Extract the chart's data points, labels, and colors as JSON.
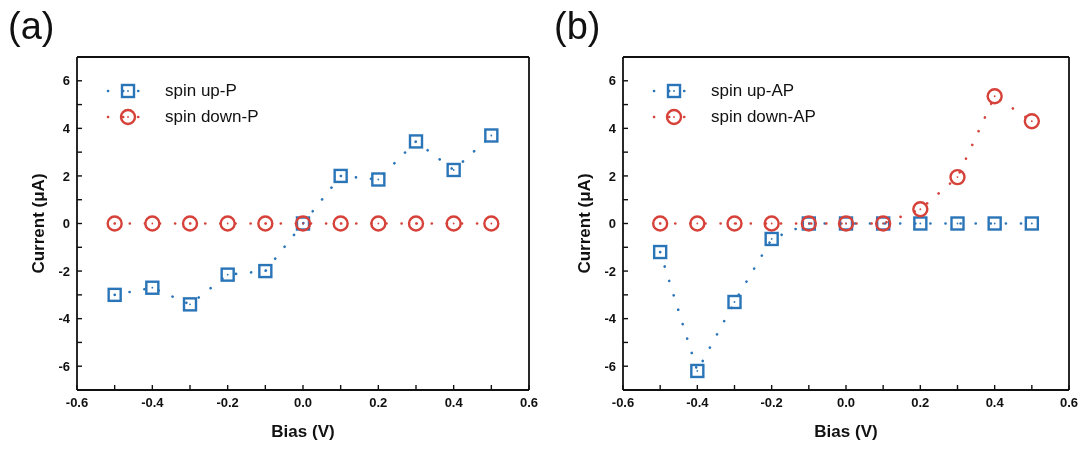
{
  "chart_data": [
    {
      "type": "line",
      "title": "(a)",
      "xlabel": "Bias (V)",
      "ylabel": "Current (μA)",
      "x": [
        -0.5,
        -0.4,
        -0.3,
        -0.2,
        -0.1,
        0,
        0.1,
        0.2,
        0.3,
        0.4,
        0.5
      ],
      "series": [
        {
          "name": "spin up-P",
          "color": "#2a74b8",
          "marker": "square",
          "values": [
            -3.0,
            -2.7,
            -3.4,
            -2.15,
            -2.0,
            0,
            2.0,
            1.85,
            3.45,
            2.25,
            3.7
          ]
        },
        {
          "name": "spin down-P",
          "color": "#d6423a",
          "marker": "circle",
          "values": [
            0,
            0,
            0,
            0,
            0,
            0,
            0,
            0,
            0,
            0,
            0
          ]
        }
      ],
      "xlim": [
        -0.6,
        0.6
      ],
      "xticks": [
        -0.6,
        {
          "value": -0.5,
          "label": null
        },
        -0.4,
        {
          "value": -0.3,
          "label": null
        },
        -0.2,
        {
          "value": -0.1,
          "label": null
        },
        {
          "value": 0,
          "label": "0.0"
        },
        {
          "value": 0.1,
          "label": null
        },
        0.2,
        {
          "value": 0.3,
          "label": null
        },
        0.4,
        {
          "value": 0.5,
          "label": null
        },
        0.6
      ],
      "ylim": [
        -7,
        7
      ],
      "yticks": [
        -6,
        {
          "value": -5,
          "label": null
        },
        -4,
        {
          "value": -3,
          "label": null
        },
        -2,
        {
          "value": -1,
          "label": null
        },
        0,
        {
          "value": 1,
          "label": null
        },
        2,
        {
          "value": 3,
          "label": null
        },
        4,
        {
          "value": 5,
          "label": null
        },
        6
      ],
      "legend": "top left",
      "line_style": "dotted"
    },
    {
      "type": "line",
      "title": "(b)",
      "xlabel": "Bias (V)",
      "ylabel": "Current (μA)",
      "x": [
        -0.5,
        -0.4,
        -0.3,
        -0.2,
        -0.1,
        0,
        0.1,
        0.2,
        0.3,
        0.4,
        0.5
      ],
      "series": [
        {
          "name": "spin up-AP",
          "color": "#2a74b8",
          "marker": "square",
          "values": [
            -1.2,
            -6.2,
            -3.3,
            -0.65,
            0,
            0,
            0,
            0,
            0,
            0,
            0
          ]
        },
        {
          "name": "spin down-AP",
          "color": "#d6423a",
          "marker": "circle",
          "values": [
            0,
            0,
            0,
            0,
            0,
            0,
            0,
            0.6,
            1.95,
            5.35,
            4.3
          ]
        }
      ],
      "xlim": [
        -0.6,
        0.6
      ],
      "xticks": [
        -0.6,
        {
          "value": -0.5,
          "label": null
        },
        -0.4,
        {
          "value": -0.3,
          "label": null
        },
        -0.2,
        {
          "value": -0.1,
          "label": null
        },
        {
          "value": 0,
          "label": "0.0"
        },
        {
          "value": 0.1,
          "label": null
        },
        0.2,
        {
          "value": 0.3,
          "label": null
        },
        0.4,
        {
          "value": 0.5,
          "label": null
        },
        0.6
      ],
      "ylim": [
        -7,
        7
      ],
      "yticks": [
        -6,
        {
          "value": -5,
          "label": null
        },
        -4,
        {
          "value": -3,
          "label": null
        },
        -2,
        {
          "value": -1,
          "label": null
        },
        0,
        {
          "value": 1,
          "label": null
        },
        2,
        {
          "value": 3,
          "label": null
        },
        4,
        {
          "value": 5,
          "label": null
        },
        6
      ],
      "legend": "top left",
      "line_style": "dotted"
    }
  ]
}
